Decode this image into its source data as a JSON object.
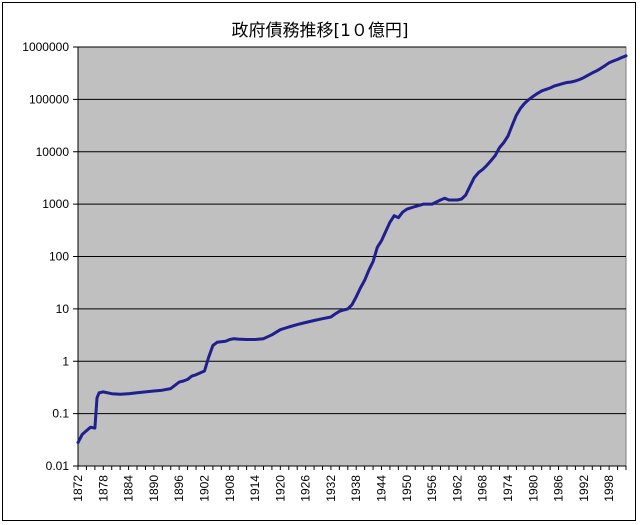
{
  "chart_data": {
    "type": "line",
    "title": "政府債務推移[1０億円]",
    "xlabel": "",
    "ylabel": "",
    "yscale": "log",
    "ylim": [
      0.01,
      1000000
    ],
    "xlim": [
      1872,
      2002
    ],
    "grid": "horizontal",
    "legend": "none",
    "y_ticks": [
      "0.01",
      "0.1",
      "1",
      "10",
      "100",
      "1000",
      "10000",
      "100000",
      "1000000"
    ],
    "x_ticks": [
      "1872",
      "1878",
      "1884",
      "1890",
      "1896",
      "1902",
      "1908",
      "1914",
      "1920",
      "1926",
      "1932",
      "1938",
      "1944",
      "1950",
      "1956",
      "1962",
      "1968",
      "1974",
      "1980",
      "1986",
      "1992",
      "1998"
    ],
    "colors": {
      "line": "#1f1f8f",
      "plot_bg": "#c0c0c0",
      "grid": "#000000"
    },
    "series": [
      {
        "values": [
          [
            1872,
            0.028
          ],
          [
            1873,
            0.04
          ],
          [
            1874,
            0.047
          ],
          [
            1875,
            0.055
          ],
          [
            1876,
            0.053
          ],
          [
            1876.5,
            0.2
          ],
          [
            1877,
            0.25
          ],
          [
            1878,
            0.26
          ],
          [
            1880,
            0.24
          ],
          [
            1882,
            0.235
          ],
          [
            1884,
            0.24
          ],
          [
            1886,
            0.25
          ],
          [
            1888,
            0.26
          ],
          [
            1890,
            0.27
          ],
          [
            1892,
            0.28
          ],
          [
            1894,
            0.3
          ],
          [
            1896,
            0.4
          ],
          [
            1897,
            0.42
          ],
          [
            1898,
            0.45
          ],
          [
            1899,
            0.52
          ],
          [
            1900,
            0.55
          ],
          [
            1901,
            0.6
          ],
          [
            1902,
            0.65
          ],
          [
            1903,
            1.2
          ],
          [
            1904,
            2.0
          ],
          [
            1905,
            2.3
          ],
          [
            1906,
            2.35
          ],
          [
            1907,
            2.4
          ],
          [
            1908,
            2.6
          ],
          [
            1909,
            2.7
          ],
          [
            1910,
            2.65
          ],
          [
            1912,
            2.6
          ],
          [
            1914,
            2.6
          ],
          [
            1916,
            2.7
          ],
          [
            1918,
            3.2
          ],
          [
            1920,
            4.0
          ],
          [
            1922,
            4.5
          ],
          [
            1924,
            5.0
          ],
          [
            1926,
            5.5
          ],
          [
            1928,
            6.0
          ],
          [
            1930,
            6.5
          ],
          [
            1932,
            7.0
          ],
          [
            1933,
            8.0
          ],
          [
            1934,
            9.0
          ],
          [
            1935,
            9.5
          ],
          [
            1936,
            10.0
          ],
          [
            1937,
            12.0
          ],
          [
            1938,
            17.0
          ],
          [
            1939,
            25.0
          ],
          [
            1940,
            35.0
          ],
          [
            1941,
            55.0
          ],
          [
            1942,
            80.0
          ],
          [
            1943,
            150.0
          ],
          [
            1944,
            200.0
          ],
          [
            1945,
            300.0
          ],
          [
            1946,
            450.0
          ],
          [
            1947,
            600.0
          ],
          [
            1948,
            550.0
          ],
          [
            1949,
            700.0
          ],
          [
            1950,
            800.0
          ],
          [
            1952,
            900.0
          ],
          [
            1954,
            1000.0
          ],
          [
            1956,
            1000.0
          ],
          [
            1958,
            1200.0
          ],
          [
            1959,
            1300.0
          ],
          [
            1960,
            1200.0
          ],
          [
            1962,
            1200.0
          ],
          [
            1963,
            1250.0
          ],
          [
            1964,
            1500.0
          ],
          [
            1965,
            2200.0
          ],
          [
            1966,
            3200.0
          ],
          [
            1967,
            4000.0
          ],
          [
            1968,
            4600.0
          ],
          [
            1969,
            5500.0
          ],
          [
            1970,
            6800.0
          ],
          [
            1971,
            8500.0
          ],
          [
            1972,
            12000.0
          ],
          [
            1973,
            15000.0
          ],
          [
            1974,
            20000.0
          ],
          [
            1975,
            32000.0
          ],
          [
            1976,
            50000.0
          ],
          [
            1977,
            68000.0
          ],
          [
            1978,
            85000.0
          ],
          [
            1979,
            100000.0
          ],
          [
            1980,
            115000.0
          ],
          [
            1981,
            130000.0
          ],
          [
            1982,
            145000.0
          ],
          [
            1983,
            155000.0
          ],
          [
            1984,
            165000.0
          ],
          [
            1985,
            180000.0
          ],
          [
            1986,
            190000.0
          ],
          [
            1987,
            200000.0
          ],
          [
            1988,
            210000.0
          ],
          [
            1989,
            215000.0
          ],
          [
            1990,
            225000.0
          ],
          [
            1991,
            240000.0
          ],
          [
            1992,
            260000.0
          ],
          [
            1993,
            290000.0
          ],
          [
            1994,
            320000.0
          ],
          [
            1995,
            350000.0
          ],
          [
            1996,
            390000.0
          ],
          [
            1997,
            440000.0
          ],
          [
            1998,
            500000.0
          ],
          [
            1999,
            540000.0
          ],
          [
            2000,
            580000.0
          ],
          [
            2001,
            630000.0
          ],
          [
            2002,
            680000.0
          ]
        ]
      }
    ]
  }
}
